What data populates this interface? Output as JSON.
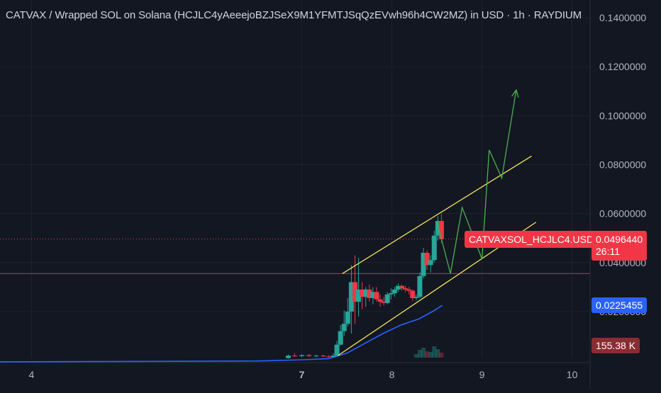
{
  "header": {
    "title": "CATVAX / Wrapped SOL on Solana (HCJLC4yAeeejoBZJSeX9M1YFMTJSqQzEVwh96h4CW2MZ) in USD · 1h · RAYDIUM"
  },
  "price_scale": {
    "symbol_tag": "CATVAXSOL_HCJLC4.USD",
    "last_price": "0.0496440",
    "countdown": "26:11",
    "ma_value": "0.0225455",
    "volume_value": "155.38 K"
  },
  "colors": {
    "background": "#131722",
    "up": "#26a69a",
    "down": "#f23645",
    "channel": "#f5e65c",
    "projection": "#4caf50",
    "ma_line": "#2962ff",
    "support_line": "#c2185b",
    "ma_label_bg": "#2962ff",
    "volume_label_bg": "#8b2b32"
  },
  "chart_data": {
    "type": "candlestick",
    "y_ticks": [
      "0.1400000",
      "0.1200000",
      "0.1000000",
      "0.0800000",
      "0.0600000",
      "0.0400000",
      "0.0200000"
    ],
    "x_ticks": [
      "4",
      "7",
      "8",
      "9",
      "10"
    ],
    "x_tick_values": [
      4,
      7,
      8,
      9,
      10
    ],
    "ylim": [
      0.0,
      0.145
    ],
    "xlim": [
      3.65,
      10.2
    ],
    "horizontal_support": 0.0355,
    "last_price_line": 0.049644,
    "candles": [
      {
        "t": 7.35,
        "o": 0.0015,
        "h": 0.003,
        "l": 0.0012,
        "c": 0.002
      },
      {
        "t": 7.39,
        "o": 0.002,
        "h": 0.008,
        "l": 0.0018,
        "c": 0.0065
      },
      {
        "t": 7.43,
        "o": 0.0065,
        "h": 0.0145,
        "l": 0.006,
        "c": 0.012
      },
      {
        "t": 7.47,
        "o": 0.012,
        "h": 0.0205,
        "l": 0.01,
        "c": 0.015
      },
      {
        "t": 7.51,
        "o": 0.015,
        "h": 0.0255,
        "l": 0.014,
        "c": 0.02
      },
      {
        "t": 7.55,
        "o": 0.02,
        "h": 0.039,
        "l": 0.011,
        "c": 0.032
      },
      {
        "t": 7.59,
        "o": 0.032,
        "h": 0.043,
        "l": 0.015,
        "c": 0.024
      },
      {
        "t": 7.63,
        "o": 0.024,
        "h": 0.042,
        "l": 0.018,
        "c": 0.029
      },
      {
        "t": 7.67,
        "o": 0.029,
        "h": 0.032,
        "l": 0.021,
        "c": 0.026
      },
      {
        "t": 7.71,
        "o": 0.026,
        "h": 0.03,
        "l": 0.022,
        "c": 0.029
      },
      {
        "t": 7.75,
        "o": 0.029,
        "h": 0.031,
        "l": 0.024,
        "c": 0.0255
      },
      {
        "t": 7.79,
        "o": 0.0255,
        "h": 0.03,
        "l": 0.023,
        "c": 0.028
      },
      {
        "t": 7.83,
        "o": 0.028,
        "h": 0.03,
        "l": 0.024,
        "c": 0.025
      },
      {
        "t": 7.87,
        "o": 0.025,
        "h": 0.027,
        "l": 0.022,
        "c": 0.024
      },
      {
        "t": 7.91,
        "o": 0.024,
        "h": 0.026,
        "l": 0.0225,
        "c": 0.0235
      },
      {
        "t": 7.95,
        "o": 0.0235,
        "h": 0.028,
        "l": 0.023,
        "c": 0.027
      },
      {
        "t": 7.99,
        "o": 0.027,
        "h": 0.0295,
        "l": 0.025,
        "c": 0.0275
      },
      {
        "t": 8.03,
        "o": 0.0275,
        "h": 0.03,
        "l": 0.026,
        "c": 0.029
      },
      {
        "t": 8.07,
        "o": 0.029,
        "h": 0.0315,
        "l": 0.028,
        "c": 0.0305
      },
      {
        "t": 8.11,
        "o": 0.0305,
        "h": 0.031,
        "l": 0.0285,
        "c": 0.0295
      },
      {
        "t": 8.15,
        "o": 0.0295,
        "h": 0.0305,
        "l": 0.028,
        "c": 0.029
      },
      {
        "t": 8.19,
        "o": 0.029,
        "h": 0.03,
        "l": 0.027,
        "c": 0.0285
      },
      {
        "t": 8.23,
        "o": 0.0285,
        "h": 0.029,
        "l": 0.0245,
        "c": 0.0255
      },
      {
        "t": 8.27,
        "o": 0.0255,
        "h": 0.027,
        "l": 0.0245,
        "c": 0.026
      },
      {
        "t": 8.31,
        "o": 0.026,
        "h": 0.036,
        "l": 0.0255,
        "c": 0.0345
      },
      {
        "t": 8.35,
        "o": 0.0345,
        "h": 0.046,
        "l": 0.0335,
        "c": 0.044
      },
      {
        "t": 8.39,
        "o": 0.044,
        "h": 0.045,
        "l": 0.037,
        "c": 0.039
      },
      {
        "t": 8.43,
        "o": 0.039,
        "h": 0.043,
        "l": 0.036,
        "c": 0.041
      },
      {
        "t": 8.47,
        "o": 0.041,
        "h": 0.053,
        "l": 0.04,
        "c": 0.051
      },
      {
        "t": 8.51,
        "o": 0.051,
        "h": 0.059,
        "l": 0.049,
        "c": 0.057
      },
      {
        "t": 8.55,
        "o": 0.057,
        "h": 0.06,
        "l": 0.048,
        "c": 0.0496
      }
    ],
    "small_candles": [
      {
        "t": 6.85,
        "o": 0.001,
        "h": 0.0025,
        "l": 0.0008,
        "c": 0.002
      },
      {
        "t": 6.92,
        "o": 0.002,
        "h": 0.003,
        "l": 0.0015,
        "c": 0.0018
      },
      {
        "t": 7.0,
        "o": 0.0018,
        "h": 0.0025,
        "l": 0.0014,
        "c": 0.0022
      },
      {
        "t": 7.08,
        "o": 0.0022,
        "h": 0.0026,
        "l": 0.0016,
        "c": 0.0018
      },
      {
        "t": 7.16,
        "o": 0.0018,
        "h": 0.0024,
        "l": 0.0014,
        "c": 0.002
      },
      {
        "t": 7.24,
        "o": 0.002,
        "h": 0.0024,
        "l": 0.0015,
        "c": 0.0017
      },
      {
        "t": 7.3,
        "o": 0.0017,
        "h": 0.0022,
        "l": 0.0013,
        "c": 0.0015
      }
    ],
    "ma_series": [
      {
        "t": 3.65,
        "v": -0.0005
      },
      {
        "t": 6.5,
        "v": -0.0002
      },
      {
        "t": 7.0,
        "v": 0.0003
      },
      {
        "t": 7.3,
        "v": 0.0008
      },
      {
        "t": 7.5,
        "v": 0.003
      },
      {
        "t": 7.7,
        "v": 0.007
      },
      {
        "t": 7.9,
        "v": 0.011
      },
      {
        "t": 8.1,
        "v": 0.0145
      },
      {
        "t": 8.3,
        "v": 0.017
      },
      {
        "t": 8.45,
        "v": 0.02
      },
      {
        "t": 8.56,
        "v": 0.0225
      }
    ],
    "channel_upper": [
      {
        "t": 7.45,
        "v": 0.0355
      },
      {
        "t": 9.55,
        "v": 0.0835
      }
    ],
    "channel_lower": [
      {
        "t": 7.4,
        "v": 0.002
      },
      {
        "t": 9.6,
        "v": 0.0565
      }
    ],
    "projection": [
      {
        "t": 8.5,
        "v": 0.0568
      },
      {
        "t": 8.65,
        "v": 0.0355
      },
      {
        "t": 8.78,
        "v": 0.0625
      },
      {
        "t": 9.0,
        "v": 0.0415
      },
      {
        "t": 9.08,
        "v": 0.086
      },
      {
        "t": 9.22,
        "v": 0.0745
      },
      {
        "t": 9.38,
        "v": 0.1105
      }
    ],
    "volume": [
      {
        "t": 8.27,
        "v": 0.25,
        "up": true
      },
      {
        "t": 8.31,
        "v": 0.55,
        "up": true
      },
      {
        "t": 8.35,
        "v": 0.7,
        "up": true
      },
      {
        "t": 8.39,
        "v": 0.45,
        "up": false
      },
      {
        "t": 8.43,
        "v": 0.4,
        "up": true
      },
      {
        "t": 8.47,
        "v": 0.8,
        "up": true
      },
      {
        "t": 8.51,
        "v": 0.6,
        "up": true
      },
      {
        "t": 8.55,
        "v": 0.35,
        "up": false
      }
    ]
  }
}
